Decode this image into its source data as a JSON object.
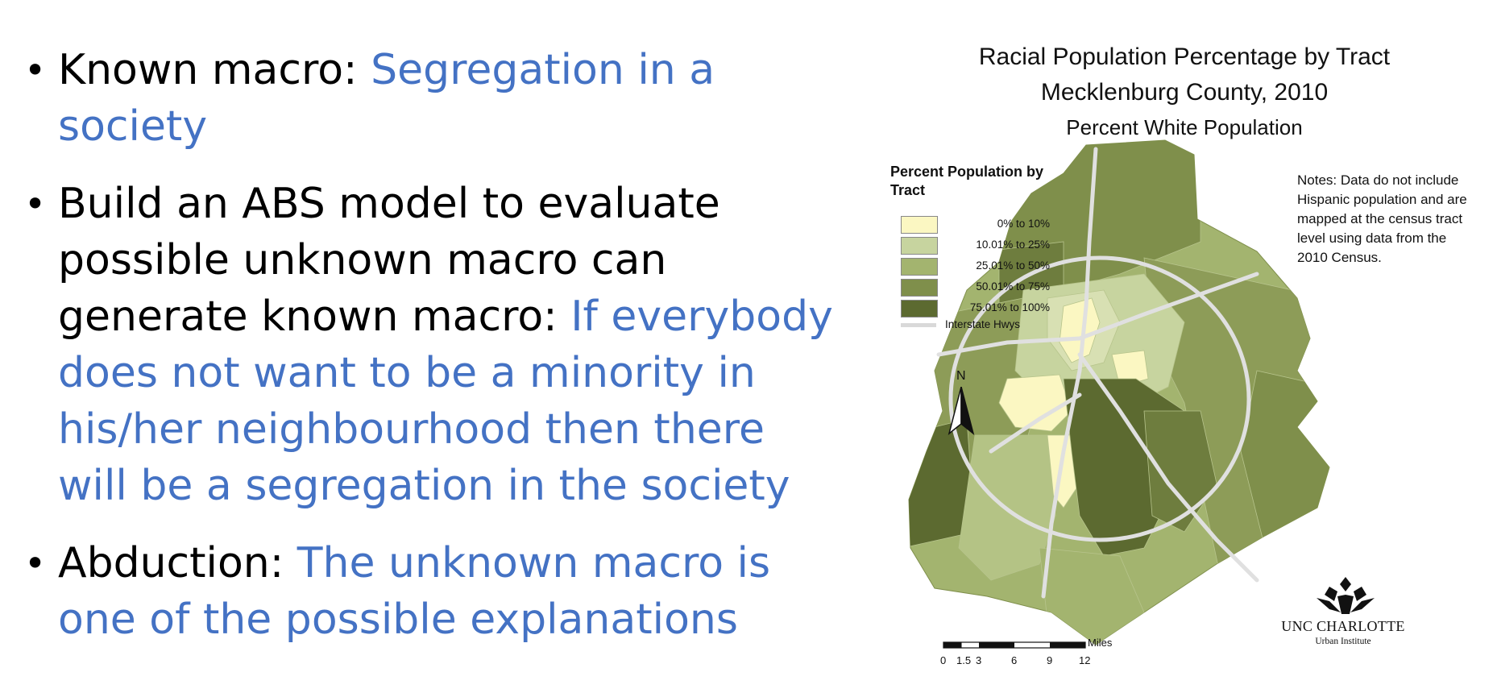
{
  "bullets": [
    {
      "prefix": "Known macro: ",
      "highlight": "Segregation in a society"
    },
    {
      "prefix": "Build an ABS model to evaluate possible unknown macro can generate known macro: ",
      "highlight": "If everybody does not want to be a minority in his/her neighbourhood then there will be a segregation in the society"
    },
    {
      "prefix": "Abduction: ",
      "highlight": "The unknown macro is one of the possible explanations"
    }
  ],
  "bullet_glyph": "•",
  "colors": {
    "highlight": "#4472c4",
    "text": "#000000"
  },
  "map": {
    "title_line1": "Racial Population Percentage by Tract",
    "title_line2": "Mecklenburg County, 2010",
    "subtitle": "Percent White Population",
    "legend": {
      "title": "Percent Population by Tract",
      "classes": [
        {
          "label": "0%  to  10%",
          "color": "#fbf7c2"
        },
        {
          "label": "10.01%  to  25%",
          "color": "#c7d49f"
        },
        {
          "label": "25.01%  to  50%",
          "color": "#a3b46f"
        },
        {
          "label": "50.01%  to  75%",
          "color": "#7f8f4b"
        },
        {
          "label": "75.01%  to  100%",
          "color": "#5c6a30"
        }
      ],
      "highway_label": "Interstate Hwys",
      "highway_color": "#d9d9d9"
    },
    "notes": "Notes: Data do not include Hispanic population and are mapped at the census tract level using data from the 2010 Census.",
    "north_label": "N",
    "scale": {
      "ticks": [
        "0",
        "1.5",
        "3",
        "6",
        "9",
        "12"
      ],
      "unit": "Miles"
    },
    "logo": {
      "name": "UNC CHARLOTTE",
      "sub": "Urban Institute",
      "icon": "unc-charlotte-crown-icon"
    }
  }
}
